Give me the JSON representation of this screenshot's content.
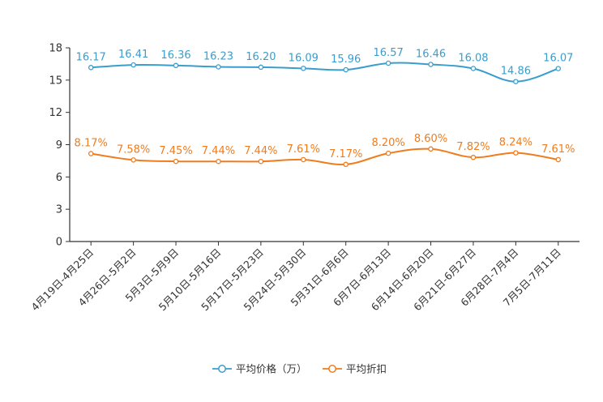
{
  "chart_data": {
    "type": "line",
    "categories": [
      "4月19日-4月25日",
      "4月26日-5月2日",
      "5月3日-5月9日",
      "5月10日-5月16日",
      "5月17日-5月23日",
      "5月24日-5月30日",
      "5月31日-6月6日",
      "6月7日-6月13日",
      "6月14日-6月20日",
      "6月21日-6月27日",
      "6月28日-7月4日",
      "7月5日-7月11日"
    ],
    "series": [
      {
        "name": "平均价格（万）",
        "color": "#3a9dcc",
        "values": [
          16.17,
          16.41,
          16.36,
          16.23,
          16.2,
          16.09,
          15.96,
          16.57,
          16.46,
          16.08,
          14.86,
          16.07
        ],
        "labels": [
          "16.17",
          "16.41",
          "16.36",
          "16.23",
          "16.20",
          "16.09",
          "15.96",
          "16.57",
          "16.46",
          "16.08",
          "14.86",
          "16.07"
        ]
      },
      {
        "name": "平均折扣",
        "color": "#f07c1e",
        "values": [
          8.17,
          7.58,
          7.45,
          7.44,
          7.44,
          7.61,
          7.17,
          8.2,
          8.6,
          7.82,
          8.24,
          7.61
        ],
        "labels": [
          "8.17%",
          "7.58%",
          "7.45%",
          "7.44%",
          "7.44%",
          "7.61%",
          "7.17%",
          "8.20%",
          "8.60%",
          "7.82%",
          "8.24%",
          "7.61%"
        ]
      }
    ],
    "yticks": [
      "0",
      "3",
      "6",
      "9",
      "12",
      "15",
      "18"
    ],
    "ylim": [
      0,
      18
    ],
    "title": "",
    "xlabel": "",
    "ylabel": "",
    "legend_position": "bottom-center"
  }
}
